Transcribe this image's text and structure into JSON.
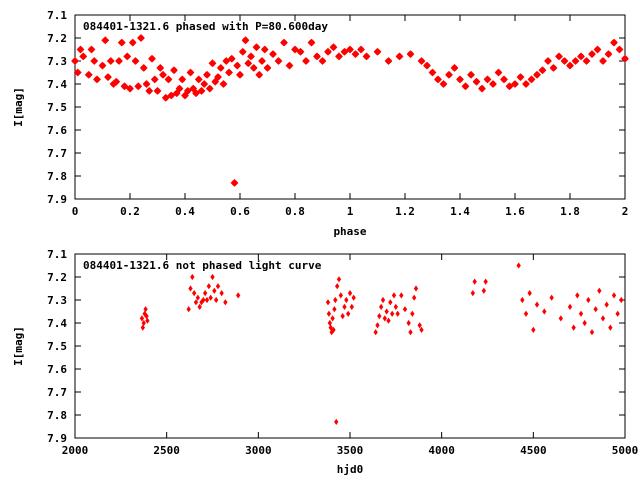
{
  "chart_data": [
    {
      "type": "scatter",
      "title": "084401-1321.6 phased with P=80.600day",
      "xlabel": "phase",
      "ylabel": "I[mag]",
      "xlim": [
        0,
        2
      ],
      "ylim": [
        7.9,
        7.1
      ],
      "y_inverted": true,
      "grid": false,
      "marker": "star",
      "color": "#ff0000",
      "xticks": [
        "0",
        "0.2",
        "0.4",
        "0.6",
        "0.8",
        "1",
        "1.2",
        "1.4",
        "1.6",
        "1.8",
        "2"
      ],
      "yticks": [
        "7.1",
        "7.2",
        "7.3",
        "7.4",
        "7.5",
        "7.6",
        "7.7",
        "7.8",
        "7.9"
      ],
      "series": [
        {
          "x": [
            0.0,
            0.01,
            0.02,
            0.03,
            0.05,
            0.06,
            0.07,
            0.08,
            0.1,
            0.11,
            0.12,
            0.13,
            0.14,
            0.15,
            0.16,
            0.17,
            0.18,
            0.19,
            0.2,
            0.21,
            0.22,
            0.23,
            0.24,
            0.25,
            0.26,
            0.27,
            0.28,
            0.29,
            0.3,
            0.31,
            0.32,
            0.33,
            0.34,
            0.35,
            0.36,
            0.37,
            0.38,
            0.39,
            0.4,
            0.41,
            0.42,
            0.43,
            0.44,
            0.45,
            0.46,
            0.47,
            0.48,
            0.49,
            0.5,
            0.51,
            0.52,
            0.53,
            0.54,
            0.55,
            0.56,
            0.57,
            0.58,
            0.59,
            0.6,
            0.61,
            0.62,
            0.63,
            0.64,
            0.65,
            0.66,
            0.67,
            0.68,
            0.69,
            0.7,
            0.72,
            0.74,
            0.76,
            0.78,
            0.8,
            0.82,
            0.84,
            0.86,
            0.88,
            0.9,
            0.92,
            0.94,
            0.96,
            0.98,
            1.0,
            1.02,
            1.04,
            1.06,
            1.1,
            1.14,
            1.18,
            1.22,
            1.26,
            1.28,
            1.3,
            1.32,
            1.34,
            1.36,
            1.38,
            1.4,
            1.42,
            1.44,
            1.46,
            1.48,
            1.5,
            1.52,
            1.54,
            1.56,
            1.58,
            1.6,
            1.62,
            1.64,
            1.66,
            1.68,
            1.7,
            1.72,
            1.74,
            1.76,
            1.78,
            1.8,
            1.82,
            1.84,
            1.86,
            1.88,
            1.9,
            1.92,
            1.94,
            1.96,
            1.98,
            2.0
          ],
          "y": [
            7.3,
            7.35,
            7.25,
            7.28,
            7.36,
            7.25,
            7.3,
            7.38,
            7.32,
            7.21,
            7.37,
            7.3,
            7.4,
            7.39,
            7.3,
            7.22,
            7.41,
            7.28,
            7.42,
            7.22,
            7.3,
            7.41,
            7.2,
            7.33,
            7.4,
            7.43,
            7.29,
            7.38,
            7.43,
            7.33,
            7.36,
            7.46,
            7.38,
            7.45,
            7.34,
            7.44,
            7.42,
            7.38,
            7.45,
            7.43,
            7.35,
            7.42,
            7.44,
            7.38,
            7.43,
            7.4,
            7.36,
            7.42,
            7.31,
            7.39,
            7.37,
            7.33,
            7.4,
            7.3,
            7.35,
            7.29,
            7.83,
            7.32,
            7.36,
            7.26,
            7.21,
            7.31,
            7.28,
            7.33,
            7.24,
            7.36,
            7.3,
            7.25,
            7.33,
            7.27,
            7.3,
            7.22,
            7.32,
            7.25,
            7.26,
            7.3,
            7.22,
            7.28,
            7.3,
            7.26,
            7.24,
            7.28,
            7.26,
            7.25,
            7.27,
            7.25,
            7.28,
            7.26,
            7.3,
            7.28,
            7.27,
            7.3,
            7.32,
            7.35,
            7.38,
            7.4,
            7.36,
            7.33,
            7.38,
            7.41,
            7.36,
            7.39,
            7.42,
            7.38,
            7.4,
            7.35,
            7.38,
            7.41,
            7.4,
            7.37,
            7.4,
            7.38,
            7.36,
            7.34,
            7.3,
            7.33,
            7.28,
            7.3,
            7.32,
            7.3,
            7.28,
            7.3,
            7.27,
            7.25,
            7.3,
            7.27,
            7.22,
            7.25,
            7.29
          ]
        }
      ]
    },
    {
      "type": "scatter",
      "title": "084401-1321.6 not phased light curve",
      "xlabel": "hjd0",
      "ylabel": "I[mag]",
      "xlim": [
        2000,
        5000
      ],
      "ylim": [
        7.9,
        7.1
      ],
      "y_inverted": true,
      "grid": false,
      "marker": "diamond",
      "color": "#ff0000",
      "xticks": [
        "2000",
        "2500",
        "3000",
        "3500",
        "4000",
        "4500",
        "5000"
      ],
      "yticks": [
        "7.1",
        "7.2",
        "7.3",
        "7.4",
        "7.5",
        "7.6",
        "7.7",
        "7.8",
        "7.9"
      ],
      "series": [
        {
          "x": [
            2365,
            2370,
            2375,
            2380,
            2385,
            2390,
            2395,
            2620,
            2630,
            2640,
            2650,
            2660,
            2670,
            2680,
            2690,
            2700,
            2710,
            2720,
            2730,
            2740,
            2750,
            2760,
            2770,
            2780,
            2800,
            2820,
            2890,
            3380,
            3385,
            3390,
            3395,
            3400,
            3405,
            3410,
            3415,
            3420,
            3430,
            3440,
            3450,
            3460,
            3470,
            3480,
            3490,
            3500,
            3510,
            3520,
            3640,
            3650,
            3660,
            3670,
            3680,
            3690,
            3700,
            3710,
            3720,
            3730,
            3740,
            3750,
            3760,
            3780,
            3800,
            3820,
            3830,
            3840,
            3850,
            3860,
            3880,
            3890,
            4170,
            4180,
            4230,
            4240,
            4420,
            4440,
            4460,
            4480,
            4500,
            4520,
            4560,
            4600,
            4650,
            4700,
            4720,
            4740,
            4760,
            4780,
            4800,
            4820,
            4840,
            4860,
            4880,
            4900,
            4920,
            4940,
            4960,
            4980,
            3425
          ],
          "y": [
            7.38,
            7.42,
            7.4,
            7.36,
            7.34,
            7.37,
            7.39,
            7.34,
            7.25,
            7.2,
            7.27,
            7.31,
            7.29,
            7.33,
            7.31,
            7.3,
            7.27,
            7.3,
            7.24,
            7.29,
            7.2,
            7.26,
            7.3,
            7.24,
            7.27,
            7.31,
            7.28,
            7.31,
            7.36,
            7.4,
            7.42,
            7.44,
            7.38,
            7.43,
            7.34,
            7.3,
            7.24,
            7.21,
            7.28,
            7.37,
            7.33,
            7.3,
            7.36,
            7.27,
            7.33,
            7.29,
            7.44,
            7.41,
            7.37,
            7.33,
            7.3,
            7.38,
            7.35,
            7.39,
            7.31,
            7.36,
            7.28,
            7.33,
            7.36,
            7.28,
            7.34,
            7.4,
            7.44,
            7.36,
            7.29,
            7.25,
            7.41,
            7.43,
            7.27,
            7.22,
            7.26,
            7.22,
            7.15,
            7.3,
            7.36,
            7.27,
            7.43,
            7.32,
            7.35,
            7.29,
            7.38,
            7.33,
            7.42,
            7.28,
            7.36,
            7.4,
            7.3,
            7.44,
            7.34,
            7.26,
            7.38,
            7.32,
            7.42,
            7.28,
            7.36,
            7.3,
            7.83
          ]
        }
      ]
    }
  ]
}
